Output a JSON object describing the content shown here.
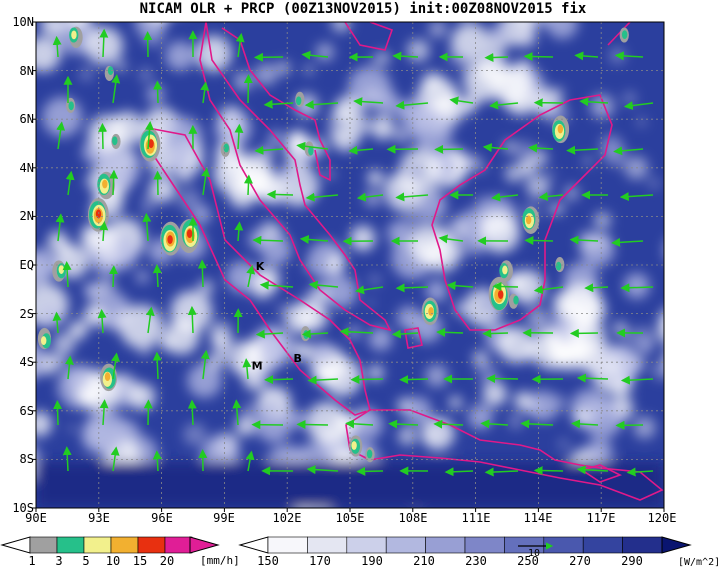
{
  "title": "NICAM OLR + PRCP (00Z13NOV2015) init:00Z08NOV2015 fix",
  "map": {
    "lat_ticks": [
      "10N",
      "8N",
      "6N",
      "4N",
      "2N",
      "EQ",
      "2S",
      "4S",
      "6S",
      "8S",
      "10S"
    ],
    "lon_ticks": [
      "90E",
      "93E",
      "96E",
      "99E",
      "102E",
      "105E",
      "108E",
      "111E",
      "114E",
      "117E",
      "120E"
    ],
    "place_labels": [
      {
        "label": "K",
        "lon": 100.5,
        "lat": -0.2
      },
      {
        "label": "M",
        "lon": 100.3,
        "lat": -4.3
      },
      {
        "label": "B",
        "lon": 102.3,
        "lat": -4.0
      }
    ]
  },
  "colors": {
    "ocean": "#2b3f9e",
    "cloud": "#ffffff",
    "coast": "#e0198a",
    "vector": "#22cc22"
  },
  "precip_colorbar": {
    "labels": [
      "1",
      "3",
      "5",
      "10",
      "15",
      "20"
    ],
    "unit": "[mm/h]",
    "colors": [
      "#a0a0a0",
      "#26c08a",
      "#f2f08c",
      "#f2b030",
      "#e83010",
      "#e01e96"
    ]
  },
  "olr_colorbar": {
    "labels": [
      "150",
      "170",
      "190",
      "210",
      "230",
      "250",
      "270",
      "290"
    ],
    "unit": "[W/m^2]",
    "colors": [
      "#f7f7fb",
      "#e4e6f2",
      "#ccd0ea",
      "#b2b8e0",
      "#989fd4",
      "#7e86c8",
      "#6470bc",
      "#4a58ae",
      "#34449f",
      "#232f8c"
    ]
  },
  "vector_reference": {
    "label": "10"
  }
}
